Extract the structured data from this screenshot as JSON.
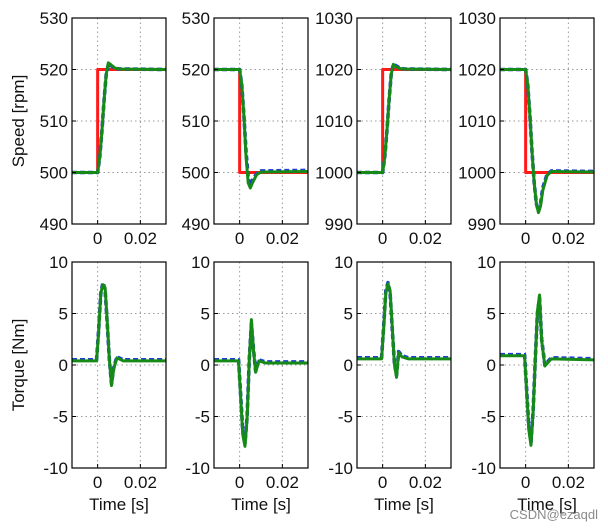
{
  "watermark": "CSDN@ezaqdl",
  "colors": {
    "reference": "#ff1a1a",
    "measured": "#1f3fd6",
    "estimated": "#168a16",
    "grid": "#9a9a9a",
    "frame": "#000000"
  },
  "chart_data": [
    {
      "type": "line",
      "panel": "speed-step-up-500",
      "ylabel": "Speed [rpm]",
      "xlabel": "",
      "xlim": [
        -0.012,
        0.032
      ],
      "xticks": [
        0,
        0.02
      ],
      "xticklabels": [
        "0",
        "0.02"
      ],
      "ylim": [
        490,
        530
      ],
      "yticks": [
        490,
        500,
        510,
        520,
        530
      ],
      "yticklabels": [
        "490",
        "500",
        "510",
        "520",
        "530"
      ],
      "grid": true,
      "series": [
        {
          "color": "red",
          "x": [
            -0.012,
            0.0,
            0.0,
            0.032
          ],
          "y": [
            500,
            500,
            520,
            520
          ]
        },
        {
          "color": "blue",
          "x": [
            -0.012,
            0.0,
            0.001,
            0.002,
            0.003,
            0.004,
            0.005,
            0.006,
            0.008,
            0.01,
            0.032
          ],
          "y": [
            500,
            500,
            503,
            508,
            514,
            519,
            521,
            520.8,
            520.3,
            520.1,
            520
          ]
        },
        {
          "color": "green",
          "x": [
            -0.012,
            0.0,
            0.001,
            0.002,
            0.003,
            0.004,
            0.005,
            0.006,
            0.008,
            0.01,
            0.032
          ],
          "y": [
            500,
            500,
            503,
            508,
            514,
            519,
            521.3,
            521,
            520.3,
            520.1,
            520
          ]
        }
      ]
    },
    {
      "type": "line",
      "panel": "speed-step-down-520",
      "ylabel": "",
      "xlabel": "",
      "xlim": [
        -0.012,
        0.032
      ],
      "xticks": [
        0,
        0.02
      ],
      "xticklabels": [
        "0",
        "0.02"
      ],
      "ylim": [
        490,
        530
      ],
      "yticks": [
        490,
        500,
        510,
        520,
        530
      ],
      "yticklabels": [
        "490",
        "500",
        "510",
        "520",
        "530"
      ],
      "grid": true,
      "series": [
        {
          "color": "red",
          "x": [
            -0.012,
            0.0,
            0.0,
            0.032
          ],
          "y": [
            520,
            520,
            500,
            500
          ]
        },
        {
          "color": "blue",
          "x": [
            -0.012,
            0.0,
            0.001,
            0.002,
            0.003,
            0.004,
            0.005,
            0.006,
            0.008,
            0.01,
            0.032
          ],
          "y": [
            520,
            520,
            517,
            511,
            504,
            499,
            497.5,
            498.5,
            499.8,
            500.3,
            500.4
          ]
        },
        {
          "color": "green",
          "x": [
            -0.012,
            0.0,
            0.001,
            0.002,
            0.003,
            0.004,
            0.005,
            0.006,
            0.008,
            0.01,
            0.032
          ],
          "y": [
            520,
            520,
            517,
            511,
            503,
            498,
            497,
            498,
            499.6,
            500.1,
            500.2
          ]
        }
      ]
    },
    {
      "type": "line",
      "panel": "speed-step-up-1000",
      "ylabel": "",
      "xlabel": "",
      "xlim": [
        -0.012,
        0.032
      ],
      "xticks": [
        0,
        0.02
      ],
      "xticklabels": [
        "0",
        "0.02"
      ],
      "ylim": [
        990,
        1030
      ],
      "yticks": [
        990,
        1000,
        1010,
        1020,
        1030
      ],
      "yticklabels": [
        "990",
        "1000",
        "1010",
        "1020",
        "1030"
      ],
      "grid": true,
      "series": [
        {
          "color": "red",
          "x": [
            -0.012,
            0.0,
            0.0,
            0.032
          ],
          "y": [
            1000,
            1000,
            1020,
            1020
          ]
        },
        {
          "color": "blue",
          "x": [
            -0.012,
            0.0,
            0.001,
            0.002,
            0.003,
            0.004,
            0.005,
            0.006,
            0.008,
            0.01,
            0.032
          ],
          "y": [
            1000,
            1000,
            1003,
            1008,
            1014,
            1019,
            1021,
            1020.8,
            1020.3,
            1020.1,
            1020
          ]
        },
        {
          "color": "green",
          "x": [
            -0.012,
            0.0,
            0.001,
            0.002,
            0.003,
            0.004,
            0.005,
            0.006,
            0.008,
            0.01,
            0.032
          ],
          "y": [
            1000,
            1000,
            1003,
            1008,
            1014,
            1019,
            1021,
            1020.6,
            1020.2,
            1020.1,
            1020
          ]
        }
      ]
    },
    {
      "type": "line",
      "panel": "speed-step-down-1020",
      "ylabel": "",
      "xlabel": "",
      "xlim": [
        -0.012,
        0.032
      ],
      "xticks": [
        0,
        0.02
      ],
      "xticklabels": [
        "0",
        "0.02"
      ],
      "ylim": [
        990,
        1030
      ],
      "yticks": [
        990,
        1000,
        1010,
        1020,
        1030
      ],
      "yticklabels": [
        "990",
        "1000",
        "1010",
        "1020",
        "1030"
      ],
      "grid": true,
      "series": [
        {
          "color": "red",
          "x": [
            -0.012,
            0.0,
            0.0,
            0.032
          ],
          "y": [
            1020,
            1020,
            1000,
            1000
          ]
        },
        {
          "color": "blue",
          "x": [
            -0.012,
            0.0,
            0.001,
            0.002,
            0.003,
            0.004,
            0.005,
            0.006,
            0.007,
            0.008,
            0.01,
            0.012,
            0.032
          ],
          "y": [
            1020,
            1020,
            1017,
            1011,
            1004,
            998,
            994,
            992.5,
            994,
            997,
            999.6,
            1000.3,
            1000.2
          ]
        },
        {
          "color": "green",
          "x": [
            -0.012,
            0.0,
            0.001,
            0.002,
            0.003,
            0.004,
            0.005,
            0.006,
            0.007,
            0.008,
            0.01,
            0.012,
            0.032
          ],
          "y": [
            1020,
            1020,
            1017,
            1011,
            1004,
            998,
            994,
            992.2,
            993.5,
            996.5,
            999.4,
            1000.2,
            1000.1
          ]
        }
      ]
    },
    {
      "type": "line",
      "panel": "torque-step-up-500",
      "ylabel": "Torque [Nm]",
      "xlabel": "Time [s]",
      "xlim": [
        -0.012,
        0.032
      ],
      "xticks": [
        0,
        0.02
      ],
      "xticklabels": [
        "0",
        "0.02"
      ],
      "ylim": [
        -10,
        10
      ],
      "yticks": [
        -10,
        -5,
        0,
        5,
        10
      ],
      "yticklabels": [
        "-10",
        "-5",
        "0",
        "5",
        "10"
      ],
      "grid": true,
      "series": [
        {
          "color": "blue",
          "x": [
            -0.012,
            -0.0005,
            0.0005,
            0.0015,
            0.0025,
            0.0035,
            0.0045,
            0.0055,
            0.0065,
            0.0075,
            0.009,
            0.012,
            0.032
          ],
          "y": [
            0.5,
            0.5,
            3.5,
            7,
            8,
            7.3,
            4,
            0.5,
            -1.8,
            -0.3,
            0.8,
            0.5,
            0.5
          ]
        },
        {
          "color": "green",
          "x": [
            -0.012,
            -0.0005,
            0.0005,
            0.0015,
            0.0025,
            0.0035,
            0.0045,
            0.0055,
            0.0065,
            0.0075,
            0.009,
            0.012,
            0.032
          ],
          "y": [
            0.4,
            0.4,
            3.3,
            7,
            7.8,
            7.5,
            4.2,
            0.5,
            -2,
            -0.4,
            0.7,
            0.4,
            0.4
          ]
        }
      ]
    },
    {
      "type": "line",
      "panel": "torque-step-down-520",
      "ylabel": "",
      "xlabel": "Time [s]",
      "xlim": [
        -0.012,
        0.032
      ],
      "xticks": [
        0,
        0.02
      ],
      "xticklabels": [
        "0",
        "0.02"
      ],
      "ylim": [
        -10,
        10
      ],
      "yticks": [
        -10,
        -5,
        0,
        5,
        10
      ],
      "yticklabels": [
        "-10",
        "-5",
        "0",
        "5",
        "10"
      ],
      "grid": true,
      "series": [
        {
          "color": "blue",
          "x": [
            -0.012,
            -0.0005,
            0.0005,
            0.0015,
            0.0025,
            0.0035,
            0.0045,
            0.0055,
            0.0065,
            0.0075,
            0.009,
            0.012,
            0.032
          ],
          "y": [
            0.5,
            0.5,
            -3,
            -6.5,
            -7.6,
            -5,
            0.5,
            4,
            1.5,
            -0.6,
            0.5,
            0.3,
            0.3
          ]
        },
        {
          "color": "green",
          "x": [
            -0.012,
            -0.0005,
            0.0005,
            0.0015,
            0.0025,
            0.0035,
            0.0045,
            0.0055,
            0.0065,
            0.0075,
            0.009,
            0.012,
            0.032
          ],
          "y": [
            0.4,
            0.4,
            -3.2,
            -6.8,
            -7.9,
            -5.2,
            0.4,
            4.4,
            1.4,
            -0.7,
            0.4,
            0.2,
            0.2
          ]
        }
      ]
    },
    {
      "type": "line",
      "panel": "torque-step-up-1000",
      "ylabel": "",
      "xlabel": "Time [s]",
      "xlim": [
        -0.012,
        0.032
      ],
      "xticks": [
        0,
        0.02
      ],
      "xticklabels": [
        "0",
        "0.02"
      ],
      "ylim": [
        -10,
        10
      ],
      "yticks": [
        -10,
        -5,
        0,
        5,
        10
      ],
      "yticklabels": [
        "-10",
        "-5",
        "0",
        "5",
        "10"
      ],
      "grid": true,
      "series": [
        {
          "color": "blue",
          "x": [
            -0.012,
            -0.0005,
            0.0005,
            0.0015,
            0.0025,
            0.0035,
            0.0045,
            0.0055,
            0.0065,
            0.0075,
            0.009,
            0.012,
            0.032
          ],
          "y": [
            0.7,
            0.7,
            3.8,
            7.2,
            8,
            7,
            3.5,
            0.2,
            -1,
            1.3,
            0.9,
            0.7,
            0.7
          ]
        },
        {
          "color": "green",
          "x": [
            -0.012,
            -0.0005,
            0.0005,
            0.0015,
            0.0025,
            0.0035,
            0.0045,
            0.0055,
            0.0065,
            0.0075,
            0.009,
            0.012,
            0.032
          ],
          "y": [
            0.6,
            0.6,
            3.6,
            7,
            7.9,
            7.2,
            3.7,
            0.1,
            -1.2,
            1.2,
            0.8,
            0.6,
            0.6
          ]
        }
      ]
    },
    {
      "type": "line",
      "panel": "torque-step-down-1020",
      "ylabel": "",
      "xlabel": "Time [s]",
      "xlim": [
        -0.012,
        0.032
      ],
      "xticks": [
        0,
        0.02
      ],
      "xticklabels": [
        "0",
        "0.02"
      ],
      "ylim": [
        -10,
        10
      ],
      "yticks": [
        -10,
        -5,
        0,
        5,
        10
      ],
      "yticklabels": [
        "-10",
        "-5",
        "0",
        "5",
        "10"
      ],
      "grid": true,
      "series": [
        {
          "color": "blue",
          "x": [
            -0.012,
            -0.0005,
            0.0005,
            0.0015,
            0.0025,
            0.0035,
            0.0045,
            0.0055,
            0.0065,
            0.0075,
            0.009,
            0.012,
            0.032
          ],
          "y": [
            1,
            1,
            -2.5,
            -6,
            -7.5,
            -4.5,
            0.5,
            5,
            6.5,
            2.5,
            0,
            0.7,
            0.6
          ]
        },
        {
          "color": "green",
          "x": [
            -0.012,
            -0.0005,
            0.0005,
            0.0015,
            0.0025,
            0.0035,
            0.0045,
            0.0055,
            0.0065,
            0.0075,
            0.009,
            0.012,
            0.032
          ],
          "y": [
            0.9,
            0.9,
            -2.7,
            -6.3,
            -7.8,
            -4.6,
            0.4,
            5.2,
            6.8,
            2.4,
            -0.1,
            0.6,
            0.5
          ]
        }
      ]
    }
  ]
}
